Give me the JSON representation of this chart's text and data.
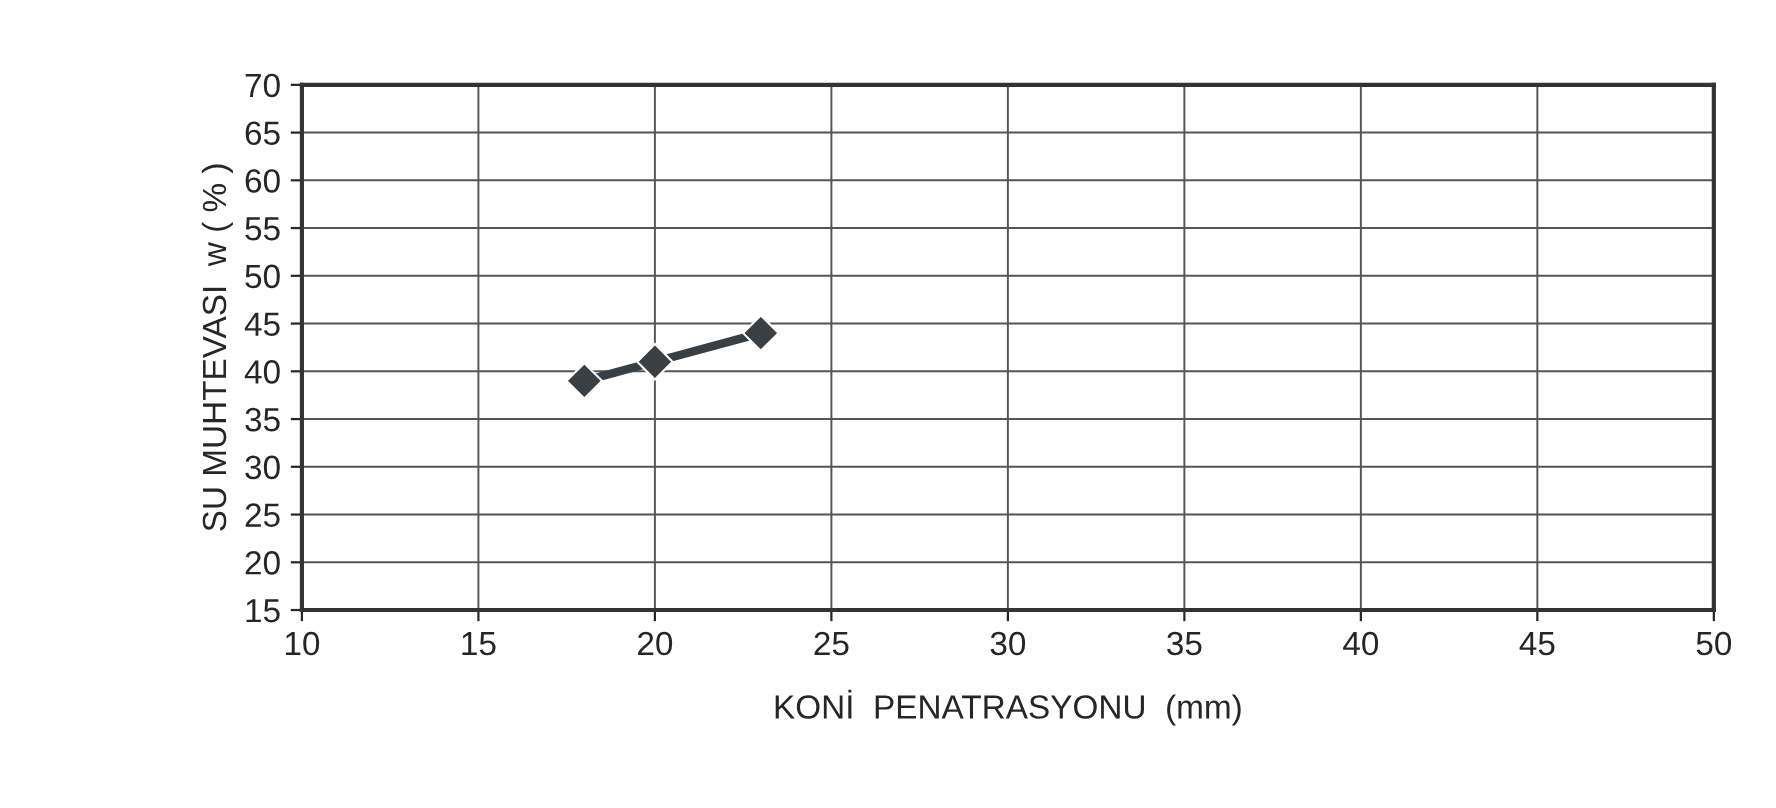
{
  "chart_data": {
    "type": "line",
    "xlabel": "KONİ  PENATRASYONU  (mm)",
    "ylabel": "SU MUHTEVASI  w ( % )",
    "x": [
      18,
      20,
      23
    ],
    "series": [
      {
        "color": "#3a3f44",
        "values": [
          39,
          41,
          44
        ]
      }
    ],
    "xlim": [
      10,
      50
    ],
    "xticks": [
      10,
      15,
      20,
      25,
      30,
      35,
      40,
      45,
      50
    ],
    "ylim": [
      15,
      70
    ],
    "yticks": [
      15,
      20,
      25,
      30,
      35,
      40,
      45,
      50,
      55,
      60,
      65,
      70
    ],
    "grid": true,
    "marker": "diamond",
    "line_style": "solid",
    "legend": false
  }
}
